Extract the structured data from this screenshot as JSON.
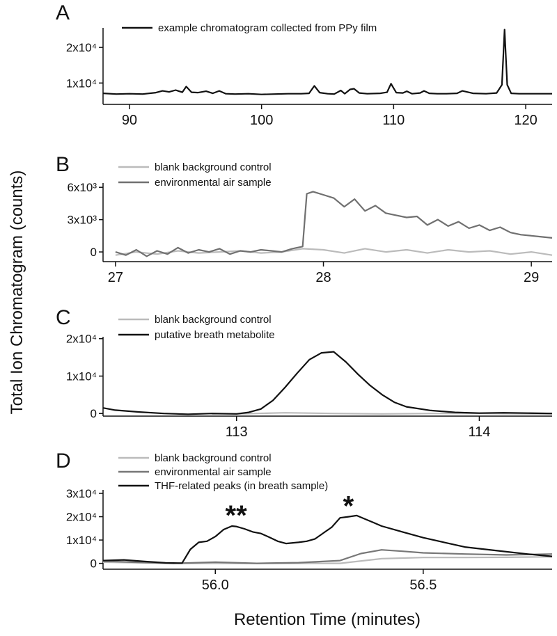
{
  "figure": {
    "y_axis_title": "Total Ion Chromatogram (counts)",
    "x_axis_title": "Retention Time (minutes)"
  },
  "chart_data": [
    {
      "type": "line",
      "panel": "A",
      "xlim": [
        88,
        122
      ],
      "ylim": [
        4000,
        25500
      ],
      "x_ticks": [
        90,
        100,
        110,
        120
      ],
      "x_tick_labels": [
        "90",
        "100",
        "110",
        "120"
      ],
      "y_ticks": [
        10000,
        20000
      ],
      "y_tick_labels": [
        "1x10⁴",
        "2x10⁴"
      ],
      "legend_position": "top-left",
      "series": [
        {
          "name": "example chromatogram collected from PPy film",
          "color": "#111111",
          "x": [
            88,
            89,
            90,
            91,
            92,
            92.5,
            93,
            93.5,
            94,
            94.3,
            94.7,
            95.2,
            95.8,
            96.3,
            96.8,
            97.3,
            98,
            99,
            100,
            101,
            102,
            103,
            103.6,
            104,
            104.4,
            105,
            105.5,
            106,
            106.3,
            106.7,
            107,
            107.4,
            108,
            109,
            109.5,
            109.8,
            110.2,
            110.7,
            111,
            111.4,
            112,
            112.3,
            112.7,
            113.3,
            114,
            114.8,
            115.2,
            116,
            117,
            117.8,
            118.2,
            118.4,
            118.6,
            118.9,
            119.5,
            120,
            121,
            122
          ],
          "y": [
            7100,
            6900,
            7000,
            6900,
            7300,
            7800,
            7500,
            8000,
            7400,
            9000,
            7400,
            7300,
            7700,
            7100,
            7800,
            7000,
            6900,
            7000,
            6800,
            6900,
            7000,
            7000,
            7100,
            9200,
            7300,
            7000,
            6900,
            7900,
            7000,
            8200,
            8400,
            7200,
            7000,
            7100,
            7400,
            9800,
            7300,
            7200,
            7700,
            7000,
            7200,
            7800,
            7100,
            7000,
            7000,
            7100,
            7800,
            7100,
            7000,
            7200,
            9500,
            25000,
            9500,
            7100,
            7000,
            7000,
            7000,
            7000
          ]
        }
      ]
    },
    {
      "type": "line",
      "panel": "B",
      "xlim": [
        26.94,
        29.1
      ],
      "ylim": [
        -900,
        6400
      ],
      "x_ticks": [
        27,
        28,
        29
      ],
      "x_tick_labels": [
        "27",
        "28",
        "29"
      ],
      "y_ticks": [
        0,
        3000,
        6000
      ],
      "y_tick_labels": [
        "0",
        "3x10³",
        "6x10³"
      ],
      "legend_position": "top-left",
      "series": [
        {
          "name": "blank background control",
          "color": "#bbbbbb",
          "x": [
            27.0,
            27.1,
            27.2,
            27.3,
            27.4,
            27.5,
            27.6,
            27.7,
            27.8,
            27.9,
            28.0,
            28.1,
            28.2,
            28.3,
            28.4,
            28.5,
            28.6,
            28.7,
            28.8,
            28.9,
            29.0,
            29.1
          ],
          "y": [
            -300,
            0,
            -200,
            100,
            -100,
            0,
            100,
            -100,
            0,
            300,
            200,
            -100,
            300,
            0,
            200,
            -100,
            200,
            0,
            100,
            -200,
            0,
            -300
          ]
        },
        {
          "name": "environmental air sample",
          "color": "#707070",
          "x": [
            27.0,
            27.05,
            27.1,
            27.15,
            27.2,
            27.25,
            27.3,
            27.35,
            27.4,
            27.45,
            27.5,
            27.55,
            27.6,
            27.65,
            27.7,
            27.75,
            27.8,
            27.85,
            27.9,
            27.92,
            27.95,
            28.0,
            28.05,
            28.1,
            28.15,
            28.2,
            28.25,
            28.3,
            28.35,
            28.4,
            28.45,
            28.5,
            28.55,
            28.6,
            28.65,
            28.7,
            28.75,
            28.8,
            28.85,
            28.9,
            28.95,
            29.0,
            29.05,
            29.1
          ],
          "y": [
            0,
            -300,
            200,
            -400,
            100,
            -200,
            400,
            -100,
            200,
            0,
            300,
            -200,
            100,
            0,
            200,
            100,
            0,
            300,
            500,
            5400,
            5600,
            5300,
            5000,
            4200,
            4900,
            3800,
            4300,
            3600,
            3400,
            3200,
            3300,
            2500,
            3000,
            2400,
            2800,
            2200,
            2500,
            2000,
            2300,
            1800,
            1600,
            1500,
            1400,
            1300
          ]
        }
      ]
    },
    {
      "type": "line",
      "panel": "C",
      "xlim": [
        112.45,
        114.3
      ],
      "ylim": [
        -700,
        20500
      ],
      "x_ticks": [
        113,
        114
      ],
      "x_tick_labels": [
        "113",
        "114"
      ],
      "y_ticks": [
        0,
        10000,
        20000
      ],
      "y_tick_labels": [
        "0",
        "1x10⁴",
        "2x10⁴"
      ],
      "legend_position": "top-left",
      "series": [
        {
          "name": "blank background control",
          "color": "#bbbbbb",
          "x": [
            112.9,
            113.0,
            113.2,
            113.4,
            113.6,
            113.8,
            114.0,
            114.3
          ],
          "y": [
            -100,
            -100,
            200,
            0,
            -100,
            0,
            0,
            -100
          ]
        },
        {
          "name": "putative breath metabolite",
          "color": "#111111",
          "x": [
            112.45,
            112.5,
            112.6,
            112.7,
            112.8,
            112.9,
            113.0,
            113.05,
            113.1,
            113.15,
            113.2,
            113.25,
            113.3,
            113.35,
            113.4,
            113.45,
            113.5,
            113.55,
            113.6,
            113.65,
            113.7,
            113.8,
            113.9,
            114.0,
            114.1,
            114.2,
            114.3
          ],
          "y": [
            1500,
            900,
            400,
            0,
            -200,
            0,
            -100,
            300,
            1200,
            3500,
            7000,
            10800,
            14400,
            16200,
            16500,
            13800,
            10500,
            7500,
            5000,
            3000,
            1800,
            800,
            300,
            100,
            200,
            100,
            0
          ]
        }
      ]
    },
    {
      "type": "line",
      "panel": "D",
      "xlim": [
        55.73,
        56.81
      ],
      "ylim": [
        -2500,
        31500
      ],
      "x_ticks": [
        56.0,
        56.5
      ],
      "x_tick_labels": [
        "56.0",
        "56.5"
      ],
      "y_ticks": [
        0,
        10000,
        20000,
        30000
      ],
      "y_tick_labels": [
        "0",
        "1x10⁴",
        "2x10⁴",
        "3x10⁴"
      ],
      "legend_position": "top-left",
      "annotations": [
        {
          "text": "**",
          "x": 56.05,
          "y": 16000
        },
        {
          "text": "*",
          "x": 56.32,
          "y": 20000
        }
      ],
      "series": [
        {
          "name": "blank background control",
          "color": "#bbbbbb",
          "x": [
            55.73,
            55.9,
            56.1,
            56.3,
            56.4,
            56.5,
            56.6,
            56.7,
            56.81
          ],
          "y": [
            500,
            0,
            0,
            0,
            2000,
            2500,
            2500,
            2600,
            2800
          ]
        },
        {
          "name": "environmental air sample",
          "color": "#777777",
          "x": [
            55.73,
            55.8,
            55.9,
            56.0,
            56.1,
            56.2,
            56.3,
            56.35,
            56.4,
            56.45,
            56.5,
            56.6,
            56.7,
            56.81
          ],
          "y": [
            1000,
            500,
            0,
            500,
            0,
            300,
            1200,
            4200,
            5800,
            5200,
            4500,
            4000,
            3600,
            4000
          ]
        },
        {
          "name": "THF-related peaks (in breath sample)",
          "color": "#111111",
          "x": [
            55.73,
            55.78,
            55.83,
            55.88,
            55.92,
            55.94,
            55.96,
            55.98,
            56.0,
            56.02,
            56.04,
            56.05,
            56.07,
            56.09,
            56.11,
            56.13,
            56.15,
            56.17,
            56.2,
            56.22,
            56.24,
            56.26,
            56.28,
            56.3,
            56.32,
            56.34,
            56.36,
            56.38,
            56.4,
            56.45,
            56.5,
            56.55,
            56.6,
            56.65,
            56.7,
            56.75,
            56.81
          ],
          "y": [
            1200,
            1500,
            800,
            200,
            100,
            6000,
            9000,
            9500,
            11500,
            14500,
            16000,
            15800,
            14800,
            13500,
            12800,
            11200,
            9500,
            8500,
            9000,
            9500,
            10500,
            13000,
            15500,
            19500,
            20000,
            20500,
            19000,
            17500,
            16000,
            13500,
            11000,
            9000,
            7000,
            6000,
            5000,
            4000,
            3000
          ]
        }
      ]
    }
  ]
}
